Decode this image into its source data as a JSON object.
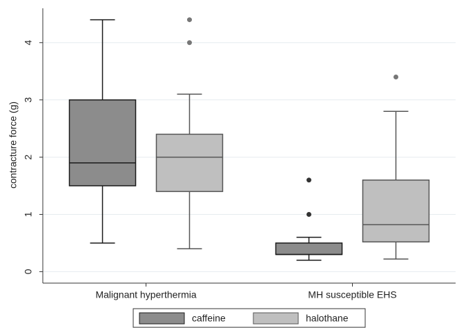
{
  "chart_data": {
    "type": "box",
    "y_label": "contracture force (g)",
    "categories": [
      "Malignant hyperthermia",
      "MH susceptible EHS"
    ],
    "series": [
      {
        "name": "caffeine",
        "color": "#8c8c8c",
        "line_color": "#1a1a1a",
        "boxes": [
          {
            "whislo": 0.5,
            "q1": 1.5,
            "med": 1.9,
            "q3": 3.0,
            "whishi": 4.4,
            "fliers": []
          },
          {
            "whislo": 0.2,
            "q1": 0.3,
            "med": 0.3,
            "q3": 0.5,
            "whishi": 0.6,
            "fliers": [
              1.0,
              1.6
            ]
          }
        ]
      },
      {
        "name": "halothane",
        "color": "#bfbfbf",
        "line_color": "#555555",
        "boxes": [
          {
            "whislo": 0.4,
            "q1": 1.4,
            "med": 2.0,
            "q3": 2.4,
            "whishi": 3.1,
            "fliers": [
              4.0,
              4.4
            ]
          },
          {
            "whislo": 0.22,
            "q1": 0.52,
            "med": 0.82,
            "q3": 1.6,
            "whishi": 2.8,
            "fliers": [
              3.4
            ]
          }
        ]
      }
    ],
    "ylim": [
      -0.2,
      4.6
    ],
    "yticks": [
      0,
      1,
      2,
      3,
      4
    ],
    "grid": true,
    "legend": "bottom"
  }
}
